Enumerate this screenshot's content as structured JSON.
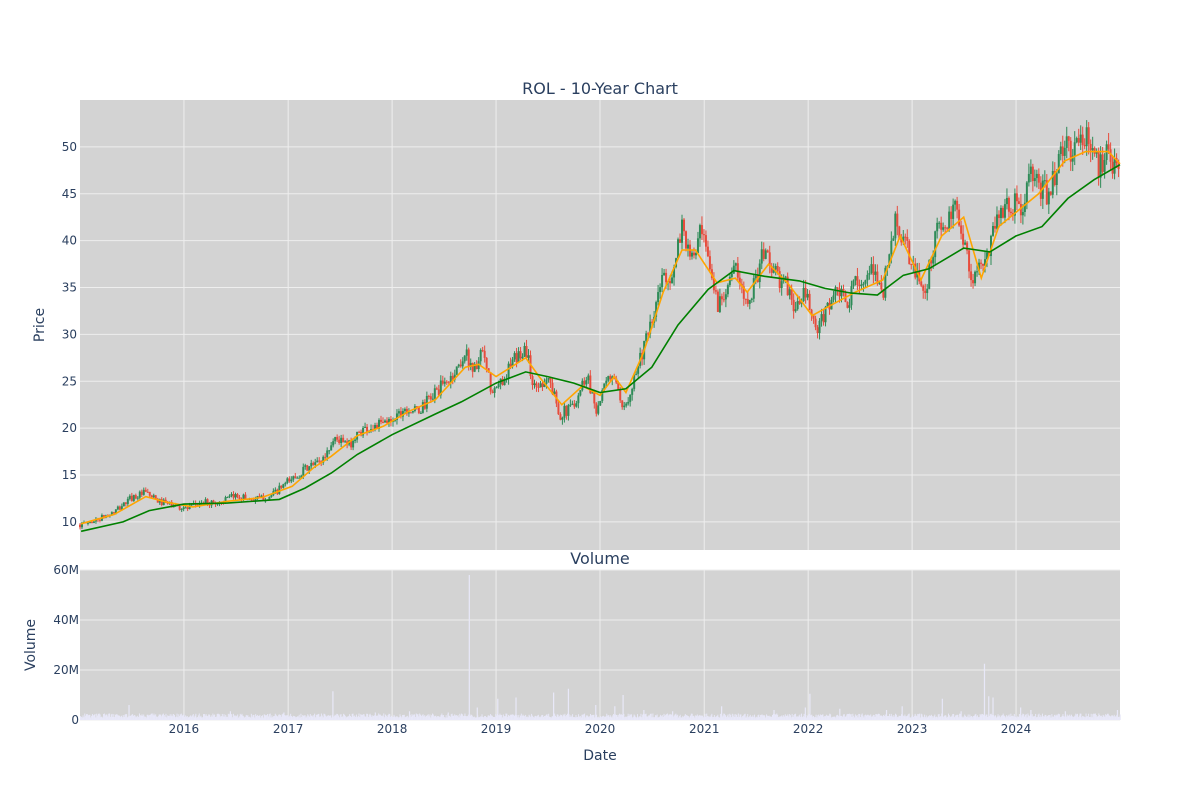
{
  "chart_data": [
    {
      "type": "candlestick",
      "title": "ROL - 10-Year Chart",
      "xlabel": "",
      "ylabel": "Price",
      "ylim": [
        7,
        55
      ],
      "yticks": [
        10,
        15,
        20,
        25,
        30,
        35,
        40,
        45,
        50
      ],
      "x_range": [
        "2015-01-01",
        "2024-12-31"
      ],
      "grid": true,
      "colors": {
        "increasing": "#2e8b57",
        "decreasing": "#e74c3c",
        "ma_short": "#ffa500",
        "ma_long": "#008000",
        "plot_bg": "#d3d3d3",
        "grid": "#eeeeee"
      },
      "price_path": [
        [
          "2015-01-05",
          9.7
        ],
        [
          "2015-03-01",
          10.2
        ],
        [
          "2015-05-01",
          11.0
        ],
        [
          "2015-07-01",
          12.6
        ],
        [
          "2015-08-20",
          13.1
        ],
        [
          "2015-10-01",
          12.2
        ],
        [
          "2015-12-01",
          11.7
        ],
        [
          "2016-01-15",
          11.4
        ],
        [
          "2016-03-01",
          12.1
        ],
        [
          "2016-05-01",
          12.0
        ],
        [
          "2016-07-01",
          12.8
        ],
        [
          "2016-09-01",
          12.4
        ],
        [
          "2016-11-01",
          12.7
        ],
        [
          "2017-01-01",
          14.3
        ],
        [
          "2017-03-01",
          15.6
        ],
        [
          "2017-05-01",
          16.6
        ],
        [
          "2017-06-15",
          19.0
        ],
        [
          "2017-08-01",
          18.1
        ],
        [
          "2017-09-15",
          19.8
        ],
        [
          "2017-11-01",
          20.2
        ],
        [
          "2017-12-15",
          20.6
        ],
        [
          "2018-02-15",
          22.2
        ],
        [
          "2018-04-01",
          21.7
        ],
        [
          "2018-06-01",
          23.8
        ],
        [
          "2018-08-01",
          25.5
        ],
        [
          "2018-09-15",
          28.0
        ],
        [
          "2018-10-15",
          26.2
        ],
        [
          "2018-11-15",
          27.9
        ],
        [
          "2018-12-20",
          23.5
        ],
        [
          "2019-01-20",
          25.0
        ],
        [
          "2019-03-01",
          27.0
        ],
        [
          "2019-04-15",
          28.6
        ],
        [
          "2019-05-15",
          24.2
        ],
        [
          "2019-07-01",
          25.5
        ],
        [
          "2019-08-15",
          21.5
        ],
        [
          "2019-09-15",
          22.0
        ],
        [
          "2019-10-15",
          23.5
        ],
        [
          "2019-11-15",
          25.8
        ],
        [
          "2019-12-20",
          22.0
        ],
        [
          "2020-01-20",
          24.5
        ],
        [
          "2020-02-15",
          26.0
        ],
        [
          "2020-03-20",
          21.5
        ],
        [
          "2020-04-20",
          24.5
        ],
        [
          "2020-05-20",
          27.5
        ],
        [
          "2020-07-01",
          31.0
        ],
        [
          "2020-08-10",
          36.5
        ],
        [
          "2020-09-15",
          36.0
        ],
        [
          "2020-10-15",
          42.0
        ],
        [
          "2020-11-15",
          37.5
        ],
        [
          "2020-12-20",
          40.8
        ],
        [
          "2021-01-20",
          37.0
        ],
        [
          "2021-02-20",
          33.0
        ],
        [
          "2021-03-20",
          35.5
        ],
        [
          "2021-04-20",
          37.0
        ],
        [
          "2021-05-20",
          33.8
        ],
        [
          "2021-06-20",
          34.8
        ],
        [
          "2021-08-01",
          39.0
        ],
        [
          "2021-09-15",
          36.0
        ],
        [
          "2021-10-20",
          35.0
        ],
        [
          "2021-11-20",
          32.5
        ],
        [
          "2021-12-20",
          34.5
        ],
        [
          "2022-02-01",
          30.0
        ],
        [
          "2022-03-15",
          33.5
        ],
        [
          "2022-04-20",
          34.5
        ],
        [
          "2022-05-20",
          32.8
        ],
        [
          "2022-06-20",
          36.5
        ],
        [
          "2022-07-20",
          35.0
        ],
        [
          "2022-08-20",
          37.0
        ],
        [
          "2022-09-20",
          34.5
        ],
        [
          "2022-11-01",
          42.0
        ],
        [
          "2022-12-20",
          38.5
        ],
        [
          "2023-01-15",
          36.0
        ],
        [
          "2023-02-20",
          35.0
        ],
        [
          "2023-03-25",
          41.0
        ],
        [
          "2023-05-01",
          41.5
        ],
        [
          "2023-06-10",
          43.5
        ],
        [
          "2023-07-10",
          39.0
        ],
        [
          "2023-07-25",
          35.5
        ],
        [
          "2023-08-15",
          37.0
        ],
        [
          "2023-09-10",
          36.8
        ],
        [
          "2023-10-15",
          42.0
        ],
        [
          "2023-11-15",
          43.5
        ],
        [
          "2023-12-20",
          44.0
        ],
        [
          "2024-01-20",
          43.0
        ],
        [
          "2024-02-20",
          47.0
        ],
        [
          "2024-03-20",
          45.5
        ],
        [
          "2024-04-20",
          45.0
        ],
        [
          "2024-05-20",
          47.5
        ],
        [
          "2024-06-20",
          50.0
        ],
        [
          "2024-07-20",
          49.5
        ],
        [
          "2024-08-20",
          51.0
        ],
        [
          "2024-09-20",
          50.5
        ],
        [
          "2024-10-20",
          47.5
        ],
        [
          "2024-11-20",
          51.0
        ],
        [
          "2024-12-15",
          47.0
        ],
        [
          "2024-12-31",
          46.5
        ]
      ],
      "moving_averages": [
        {
          "color": "#ffa500",
          "points": [
            [
              "2015-01-05",
              9.8
            ],
            [
              "2015-05-01",
              10.8
            ],
            [
              "2015-08-20",
              12.7
            ],
            [
              "2015-11-01",
              12.1
            ],
            [
              "2016-02-01",
              11.6
            ],
            [
              "2016-06-01",
              12.2
            ],
            [
              "2016-10-01",
              12.6
            ],
            [
              "2017-01-15",
              13.8
            ],
            [
              "2017-04-01",
              15.8
            ],
            [
              "2017-06-01",
              17.0
            ],
            [
              "2017-09-01",
              19.2
            ],
            [
              "2017-12-01",
              20.2
            ],
            [
              "2018-03-01",
              21.8
            ],
            [
              "2018-06-01",
              23.0
            ],
            [
              "2018-09-15",
              26.5
            ],
            [
              "2018-11-01",
              26.8
            ],
            [
              "2019-01-01",
              25.5
            ],
            [
              "2019-04-15",
              27.5
            ],
            [
              "2019-06-01",
              25.5
            ],
            [
              "2019-08-20",
              22.5
            ],
            [
              "2019-11-01",
              24.5
            ],
            [
              "2020-01-01",
              23.5
            ],
            [
              "2020-02-20",
              25.5
            ],
            [
              "2020-04-01",
              23.8
            ],
            [
              "2020-06-01",
              28.0
            ],
            [
              "2020-08-10",
              34.5
            ],
            [
              "2020-10-15",
              39.0
            ],
            [
              "2020-12-01",
              39.0
            ],
            [
              "2021-02-15",
              35.5
            ],
            [
              "2021-04-20",
              36.0
            ],
            [
              "2021-06-01",
              34.5
            ],
            [
              "2021-08-15",
              37.5
            ],
            [
              "2021-10-20",
              35.5
            ],
            [
              "2022-01-15",
              32.0
            ],
            [
              "2022-03-15",
              33.0
            ],
            [
              "2022-06-15",
              34.5
            ],
            [
              "2022-09-20",
              35.8
            ],
            [
              "2022-11-20",
              40.5
            ],
            [
              "2023-02-01",
              35.8
            ],
            [
              "2023-04-15",
              40.5
            ],
            [
              "2023-07-01",
              42.5
            ],
            [
              "2023-09-01",
              36.0
            ],
            [
              "2023-11-01",
              41.5
            ],
            [
              "2024-01-20",
              43.5
            ],
            [
              "2024-03-20",
              45.0
            ],
            [
              "2024-06-20",
              48.5
            ],
            [
              "2024-09-01",
              49.5
            ],
            [
              "2024-11-20",
              49.5
            ],
            [
              "2024-12-31",
              48.2
            ]
          ]
        },
        {
          "color": "#008000",
          "points": [
            [
              "2015-01-05",
              9.0
            ],
            [
              "2015-06-01",
              10.0
            ],
            [
              "2015-09-01",
              11.2
            ],
            [
              "2016-01-01",
              11.9
            ],
            [
              "2016-06-01",
              12.0
            ],
            [
              "2016-12-01",
              12.4
            ],
            [
              "2017-03-01",
              13.6
            ],
            [
              "2017-06-01",
              15.2
            ],
            [
              "2017-09-01",
              17.2
            ],
            [
              "2018-01-01",
              19.3
            ],
            [
              "2018-06-01",
              21.5
            ],
            [
              "2018-09-01",
              22.8
            ],
            [
              "2019-01-01",
              24.8
            ],
            [
              "2019-04-15",
              26.0
            ],
            [
              "2019-07-01",
              25.5
            ],
            [
              "2019-10-01",
              24.8
            ],
            [
              "2020-01-01",
              23.8
            ],
            [
              "2020-04-01",
              24.2
            ],
            [
              "2020-07-01",
              26.5
            ],
            [
              "2020-10-01",
              31.0
            ],
            [
              "2021-01-15",
              34.8
            ],
            [
              "2021-04-15",
              36.8
            ],
            [
              "2021-08-01",
              36.2
            ],
            [
              "2021-12-01",
              35.7
            ],
            [
              "2022-03-01",
              34.9
            ],
            [
              "2022-06-01",
              34.4
            ],
            [
              "2022-09-01",
              34.2
            ],
            [
              "2022-12-01",
              36.3
            ],
            [
              "2023-03-01",
              37.0
            ],
            [
              "2023-07-01",
              39.2
            ],
            [
              "2023-10-01",
              38.8
            ],
            [
              "2024-01-01",
              40.5
            ],
            [
              "2024-04-01",
              41.5
            ],
            [
              "2024-07-01",
              44.5
            ],
            [
              "2024-10-01",
              46.5
            ],
            [
              "2024-12-31",
              48.1
            ]
          ]
        }
      ]
    },
    {
      "type": "bar",
      "title": "Volume",
      "xlabel": "Date",
      "ylabel": "Volume",
      "ylim": [
        0,
        60000000
      ],
      "yticks": [
        0,
        20000000,
        40000000,
        60000000
      ],
      "ytick_labels": [
        "0",
        "20M",
        "40M",
        "60M"
      ],
      "xtick_labels": [
        "2016",
        "2017",
        "2018",
        "2019",
        "2020",
        "2021",
        "2022",
        "2023",
        "2024"
      ],
      "x_range": [
        "2015-01-01",
        "2024-12-31"
      ],
      "grid": true,
      "colors": {
        "bar": "#e8e8f8",
        "plot_bg": "#d3d3d3"
      },
      "baseline": 1800000,
      "spikes": [
        [
          "2015-06-20",
          6000000
        ],
        [
          "2016-06-10",
          3500000
        ],
        [
          "2016-12-15",
          3000000
        ],
        [
          "2017-06-05",
          11500000
        ],
        [
          "2017-11-01",
          3000000
        ],
        [
          "2018-03-01",
          3500000
        ],
        [
          "2018-07-15",
          3000000
        ],
        [
          "2018-09-27",
          58000000
        ],
        [
          "2018-10-25",
          5000000
        ],
        [
          "2019-01-05",
          8500000
        ],
        [
          "2019-03-10",
          9000000
        ],
        [
          "2019-07-20",
          11000000
        ],
        [
          "2019-09-10",
          12500000
        ],
        [
          "2019-12-15",
          6000000
        ],
        [
          "2020-02-20",
          5500000
        ],
        [
          "2020-03-20",
          10000000
        ],
        [
          "2020-06-01",
          4000000
        ],
        [
          "2020-09-10",
          3500000
        ],
        [
          "2021-03-01",
          5500000
        ],
        [
          "2021-09-01",
          4000000
        ],
        [
          "2021-12-20",
          5000000
        ],
        [
          "2022-01-05",
          10500000
        ],
        [
          "2022-04-20",
          4500000
        ],
        [
          "2022-10-01",
          4000000
        ],
        [
          "2022-11-25",
          5500000
        ],
        [
          "2023-04-15",
          8500000
        ],
        [
          "2023-06-20",
          3500000
        ],
        [
          "2023-09-10",
          22500000
        ],
        [
          "2023-09-25",
          9500000
        ],
        [
          "2023-10-10",
          9000000
        ],
        [
          "2024-01-15",
          5000000
        ],
        [
          "2024-02-20",
          4000000
        ],
        [
          "2024-06-20",
          3500000
        ],
        [
          "2024-12-20",
          4000000
        ]
      ]
    }
  ],
  "price_yticks": [
    "10",
    "15",
    "20",
    "25",
    "30",
    "35",
    "40",
    "45",
    "50"
  ]
}
